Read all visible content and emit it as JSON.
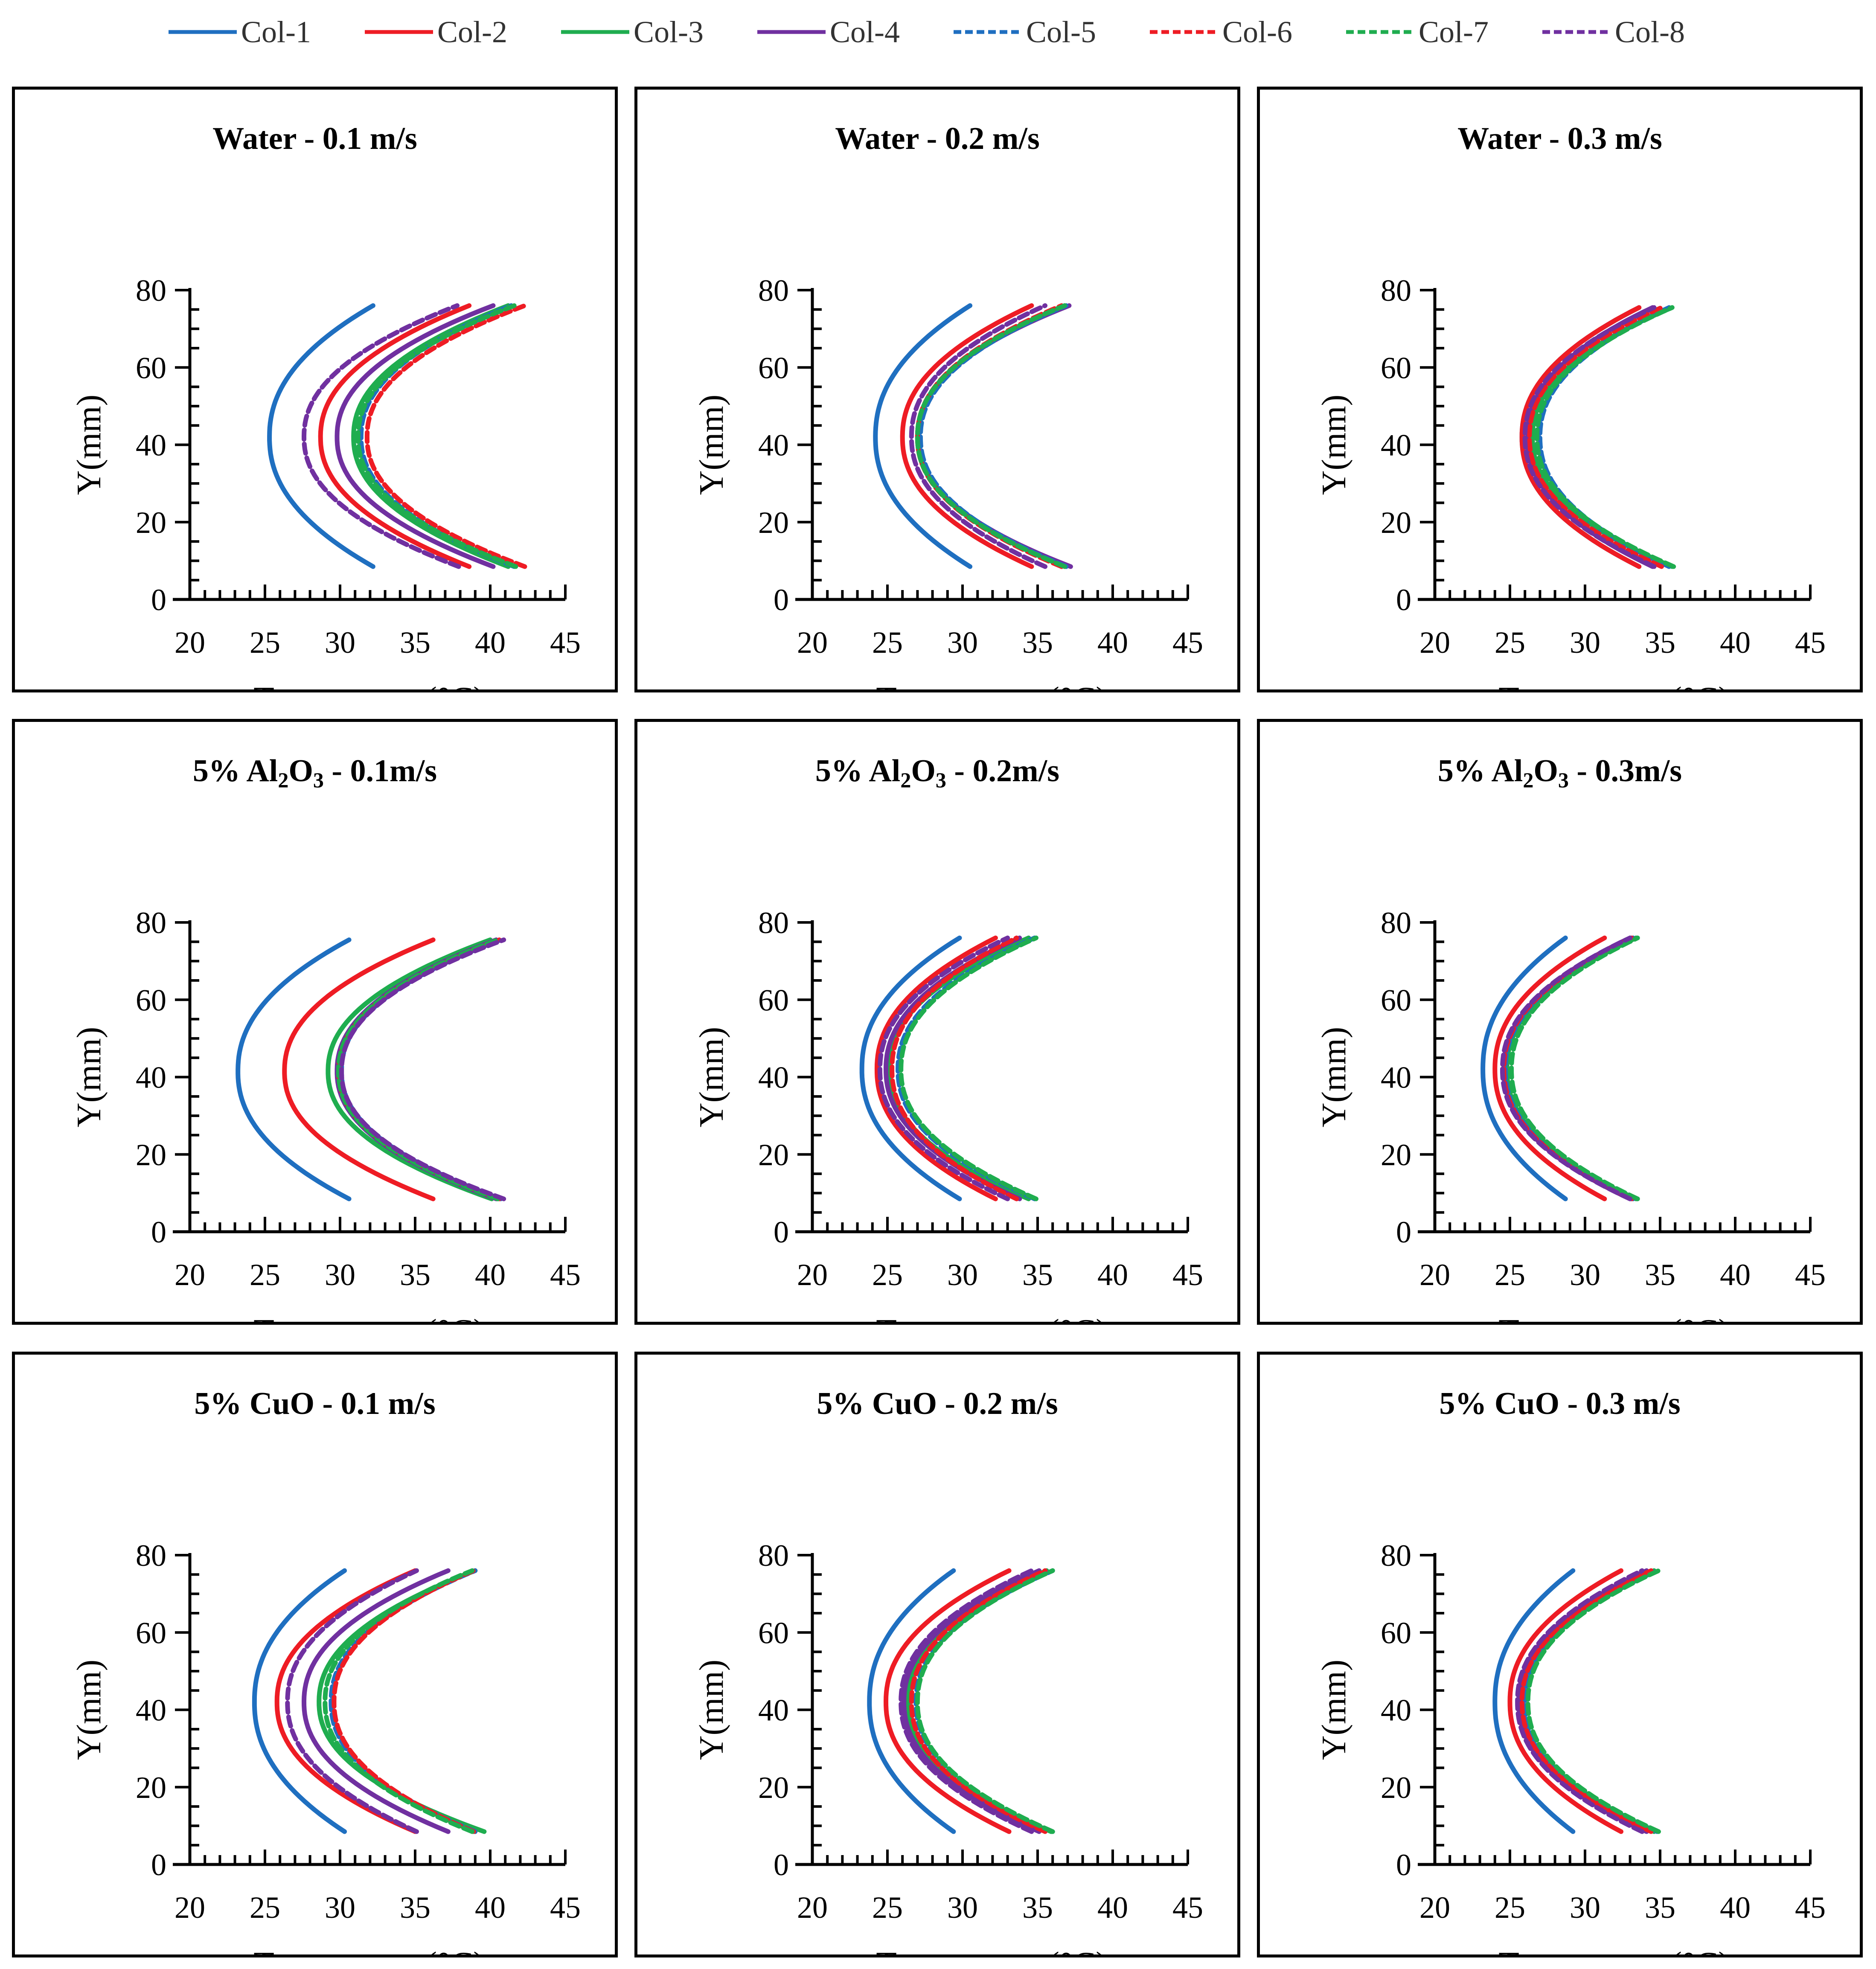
{
  "legend": {
    "items": [
      {
        "label": "Col-1",
        "color": "#1f6fc0",
        "dash": false
      },
      {
        "label": "Col-2",
        "color": "#ee1c24",
        "dash": false
      },
      {
        "label": "Col-3",
        "color": "#1fad4f",
        "dash": false
      },
      {
        "label": "Col-4",
        "color": "#7030a0",
        "dash": false
      },
      {
        "label": "Col-5",
        "color": "#1f6fc0",
        "dash": true
      },
      {
        "label": "Col-6",
        "color": "#ee1c24",
        "dash": true
      },
      {
        "label": "Col-7",
        "color": "#1fad4f",
        "dash": true
      },
      {
        "label": "Col-8",
        "color": "#7030a0",
        "dash": true
      }
    ]
  },
  "panels": [
    {
      "title": "Water - 0.1 m/s",
      "title_parts": {
        "pre": "",
        "sub": "",
        "post": ""
      }
    },
    {
      "title": "Water - 0.2 m/s",
      "title_parts": {
        "pre": "",
        "sub": "",
        "post": ""
      }
    },
    {
      "title": "Water - 0.3 m/s",
      "title_parts": {
        "pre": "",
        "sub": "",
        "post": ""
      }
    },
    {
      "title": "",
      "title_parts": {
        "pre": "5% Al",
        "sub": "2",
        "mid": "O",
        "sub2": "3",
        "post": " - 0.1m/s"
      }
    },
    {
      "title": "",
      "title_parts": {
        "pre": "5% Al",
        "sub": "2",
        "mid": "O",
        "sub2": "3",
        "post": " - 0.2m/s"
      }
    },
    {
      "title": "",
      "title_parts": {
        "pre": "5% Al",
        "sub": "2",
        "mid": "O",
        "sub2": "3",
        "post": " - 0.3m/s"
      }
    },
    {
      "title": "5% CuO - 0.1 m/s",
      "title_parts": {
        "pre": "",
        "sub": "",
        "post": ""
      }
    },
    {
      "title": "5% CuO - 0.2 m/s",
      "title_parts": {
        "pre": "",
        "sub": "",
        "post": ""
      }
    },
    {
      "title": "5% CuO - 0.3 m/s",
      "title_parts": {
        "pre": "",
        "sub": "",
        "post": ""
      }
    }
  ],
  "chart_data": [
    {
      "type": "line",
      "title": "Water - 0.1 m/s",
      "xlabel": "Tempreature(°C)",
      "ylabel": "Y(mm)",
      "xlim": [
        20,
        45
      ],
      "ylim": [
        0,
        80
      ],
      "xticks": [
        20,
        25,
        30,
        35,
        40,
        45
      ],
      "yticks": [
        0,
        20,
        40,
        60,
        80
      ],
      "y_top": 76,
      "y_mid": 42,
      "y_bottom": 8.5,
      "series": [
        {
          "name": "Col-1",
          "min": 25.3,
          "top": 32.2,
          "bottom": 32.2
        },
        {
          "name": "Col-2",
          "min": 28.7,
          "top": 38.6,
          "bottom": 38.6
        },
        {
          "name": "Col-3",
          "min": 30.9,
          "top": 41.2,
          "bottom": 41.2
        },
        {
          "name": "Col-4",
          "min": 29.8,
          "top": 40.2,
          "bottom": 40.2
        },
        {
          "name": "Col-5",
          "min": 31.4,
          "top": 41.4,
          "bottom": 41.6
        },
        {
          "name": "Col-6",
          "min": 31.8,
          "top": 42.3,
          "bottom": 42.3
        },
        {
          "name": "Col-7",
          "min": 31.2,
          "top": 41.6,
          "bottom": 41.7
        },
        {
          "name": "Col-8",
          "min": 27.6,
          "top": 37.8,
          "bottom": 37.9
        }
      ]
    },
    {
      "type": "line",
      "title": "Water - 0.2 m/s",
      "xlabel": "Tempreature(°C)",
      "ylabel": "Y(mm)",
      "xlim": [
        20,
        45
      ],
      "ylim": [
        0,
        80
      ],
      "xticks": [
        20,
        25,
        30,
        35,
        40,
        45
      ],
      "yticks": [
        0,
        20,
        40,
        60,
        80
      ],
      "y_top": 76,
      "y_mid": 42,
      "y_bottom": 8.5,
      "series": [
        {
          "name": "Col-1",
          "min": 24.2,
          "top": 30.5,
          "bottom": 30.5
        },
        {
          "name": "Col-2",
          "min": 26.0,
          "top": 34.6,
          "bottom": 34.6
        },
        {
          "name": "Col-3",
          "min": 27.0,
          "top": 36.8,
          "bottom": 36.9
        },
        {
          "name": "Col-4",
          "min": 27.0,
          "top": 37.1,
          "bottom": 37.2
        },
        {
          "name": "Col-5",
          "min": 27.2,
          "top": 36.9,
          "bottom": 36.9
        },
        {
          "name": "Col-6",
          "min": 27.0,
          "top": 36.6,
          "bottom": 36.6
        },
        {
          "name": "Col-7",
          "min": 27.0,
          "top": 36.8,
          "bottom": 36.8
        },
        {
          "name": "Col-8",
          "min": 26.6,
          "top": 35.5,
          "bottom": 35.5
        }
      ]
    },
    {
      "type": "line",
      "title": "Water - 0.3 m/s",
      "xlabel": "Tempreature(°C)",
      "ylabel": "Y(mm)",
      "xlim": [
        20,
        45
      ],
      "ylim": [
        0,
        80
      ],
      "xticks": [
        20,
        25,
        30,
        35,
        40,
        45
      ],
      "yticks": [
        0,
        20,
        40,
        60,
        80
      ],
      "y_top": 75.5,
      "y_mid": 42,
      "y_bottom": 8.5,
      "series": [
        {
          "name": "Col-1",
          "min": 25.8,
          "top": 33.6,
          "bottom": 33.6
        },
        {
          "name": "Col-2",
          "min": 25.8,
          "top": 33.6,
          "bottom": 33.6
        },
        {
          "name": "Col-3",
          "min": 26.5,
          "top": 35.8,
          "bottom": 35.8
        },
        {
          "name": "Col-4",
          "min": 26.2,
          "top": 34.5,
          "bottom": 34.5
        },
        {
          "name": "Col-5",
          "min": 27.0,
          "top": 35.6,
          "bottom": 35.6
        },
        {
          "name": "Col-6",
          "min": 26.3,
          "top": 35.1,
          "bottom": 35.1
        },
        {
          "name": "Col-7",
          "min": 26.8,
          "top": 35.8,
          "bottom": 35.9
        },
        {
          "name": "Col-8",
          "min": 26.0,
          "top": 34.6,
          "bottom": 34.6
        }
      ]
    },
    {
      "type": "line",
      "title": "5% Al2O3 - 0.1m/s",
      "xlabel": "Tempreature(°C)",
      "ylabel": "Y(mm)",
      "xlim": [
        20,
        45
      ],
      "ylim": [
        0,
        80
      ],
      "xticks": [
        20,
        25,
        30,
        35,
        40,
        45
      ],
      "yticks": [
        0,
        20,
        40,
        60,
        80
      ],
      "y_top": 75.5,
      "y_mid": 41.5,
      "y_bottom": 8.5,
      "series": [
        {
          "name": "Col-1",
          "min": 23.2,
          "top": 30.6,
          "bottom": 30.6
        },
        {
          "name": "Col-2",
          "min": 26.3,
          "top": 36.2,
          "bottom": 36.2
        },
        {
          "name": "Col-3",
          "min": 29.2,
          "top": 40.0,
          "bottom": 40.1
        },
        {
          "name": "Col-4",
          "min": 29.8,
          "top": 40.4,
          "bottom": 40.4
        },
        {
          "name": "Col-5",
          "min": 30.1,
          "top": 40.7,
          "bottom": 40.7
        },
        {
          "name": "Col-6",
          "min": 29.9,
          "top": 40.6,
          "bottom": 40.6
        },
        {
          "name": "Col-7",
          "min": 29.9,
          "top": 40.5,
          "bottom": 40.5
        },
        {
          "name": "Col-8",
          "min": 30.1,
          "top": 40.9,
          "bottom": 40.9
        }
      ]
    },
    {
      "type": "line",
      "title": "5% Al2O3 - 0.2m/s",
      "xlabel": "Tempreature(°C)",
      "ylabel": "Y(mm)",
      "xlim": [
        20,
        45
      ],
      "ylim": [
        0,
        80
      ],
      "xticks": [
        20,
        25,
        30,
        35,
        40,
        45
      ],
      "yticks": [
        0,
        20,
        40,
        60,
        80
      ],
      "y_top": 76,
      "y_mid": 42,
      "y_bottom": 8.5,
      "series": [
        {
          "name": "Col-1",
          "min": 23.3,
          "top": 29.8,
          "bottom": 29.8
        },
        {
          "name": "Col-2",
          "min": 24.3,
          "top": 32.2,
          "bottom": 32.2
        },
        {
          "name": "Col-3",
          "min": 25.1,
          "top": 34.4,
          "bottom": 34.4
        },
        {
          "name": "Col-4",
          "min": 24.9,
          "top": 33.8,
          "bottom": 33.8
        },
        {
          "name": "Col-5",
          "min": 25.7,
          "top": 34.8,
          "bottom": 34.8
        },
        {
          "name": "Col-6",
          "min": 25.3,
          "top": 33.6,
          "bottom": 33.6
        },
        {
          "name": "Col-7",
          "min": 25.9,
          "top": 34.9,
          "bottom": 34.9
        },
        {
          "name": "Col-8",
          "min": 24.5,
          "top": 33.0,
          "bottom": 33.0
        }
      ]
    },
    {
      "type": "line",
      "title": "5% Al2O3 - 0.3m/s",
      "xlabel": "Tempreature(°C)",
      "ylabel": "Y(mm)",
      "xlim": [
        20,
        45
      ],
      "ylim": [
        0,
        80
      ],
      "xticks": [
        20,
        25,
        30,
        35,
        40,
        45
      ],
      "yticks": [
        0,
        20,
        40,
        60,
        80
      ],
      "y_top": 76,
      "y_mid": 42,
      "y_bottom": 8.5,
      "series": [
        {
          "name": "Col-1",
          "min": 23.2,
          "top": 28.7,
          "bottom": 28.7
        },
        {
          "name": "Col-2",
          "min": 24.0,
          "top": 31.3,
          "bottom": 31.3
        },
        {
          "name": "Col-3",
          "min": 24.8,
          "top": 33.4,
          "bottom": 33.4
        },
        {
          "name": "Col-4",
          "min": 24.6,
          "top": 33.0,
          "bottom": 33.0
        },
        {
          "name": "Col-5",
          "min": 24.7,
          "top": 33.2,
          "bottom": 33.2
        },
        {
          "name": "Col-6",
          "min": 24.6,
          "top": 33.1,
          "bottom": 33.1
        },
        {
          "name": "Col-7",
          "min": 25.1,
          "top": 33.5,
          "bottom": 33.5
        },
        {
          "name": "Col-8",
          "min": 24.5,
          "top": 33.0,
          "bottom": 33.0
        }
      ]
    },
    {
      "type": "line",
      "title": "5% CuO - 0.1 m/s",
      "xlabel": "Tempreature(°C)",
      "ylabel": "Y(mm)",
      "xlim": [
        20,
        45
      ],
      "ylim": [
        0,
        80
      ],
      "xticks": [
        20,
        25,
        30,
        35,
        40,
        45
      ],
      "yticks": [
        0,
        20,
        40,
        60,
        80
      ],
      "y_top": 76,
      "y_mid": 42,
      "y_bottom": 8.5,
      "series": [
        {
          "name": "Col-1",
          "min": 24.3,
          "top": 30.3,
          "bottom": 30.3
        },
        {
          "name": "Col-2",
          "min": 25.8,
          "top": 35.0,
          "bottom": 35.0
        },
        {
          "name": "Col-3",
          "min": 28.6,
          "top": 39.0,
          "bottom": 39.6
        },
        {
          "name": "Col-4",
          "min": 27.6,
          "top": 37.2,
          "bottom": 37.2
        },
        {
          "name": "Col-5",
          "min": 29.4,
          "top": 39.0,
          "bottom": 39.0
        },
        {
          "name": "Col-6",
          "min": 29.6,
          "top": 38.9,
          "bottom": 38.9
        },
        {
          "name": "Col-7",
          "min": 29.0,
          "top": 38.8,
          "bottom": 38.8
        },
        {
          "name": "Col-8",
          "min": 26.5,
          "top": 35.1,
          "bottom": 35.1
        }
      ]
    },
    {
      "type": "line",
      "title": "5% CuO - 0.2 m/s",
      "xlabel": "Tempreature(°C)",
      "ylabel": "Y(mm)",
      "xlim": [
        20,
        45
      ],
      "ylim": [
        0,
        80
      ],
      "xticks": [
        20,
        25,
        30,
        35,
        40,
        45
      ],
      "yticks": [
        0,
        20,
        40,
        60,
        80
      ],
      "y_top": 76,
      "y_mid": 42,
      "y_bottom": 8.5,
      "series": [
        {
          "name": "Col-1",
          "min": 23.8,
          "top": 29.4,
          "bottom": 29.4
        },
        {
          "name": "Col-2",
          "min": 24.9,
          "top": 33.1,
          "bottom": 33.1
        },
        {
          "name": "Col-3",
          "min": 26.4,
          "top": 35.6,
          "bottom": 35.9
        },
        {
          "name": "Col-4",
          "min": 26.1,
          "top": 35.1,
          "bottom": 35.1
        },
        {
          "name": "Col-5",
          "min": 26.9,
          "top": 36.0,
          "bottom": 36.0
        },
        {
          "name": "Col-6",
          "min": 26.6,
          "top": 35.5,
          "bottom": 35.5
        },
        {
          "name": "Col-7",
          "min": 27.0,
          "top": 36.0,
          "bottom": 36.0
        },
        {
          "name": "Col-8",
          "min": 25.9,
          "top": 34.6,
          "bottom": 34.6
        }
      ]
    },
    {
      "type": "line",
      "title": "5% CuO - 0.3 m/s",
      "xlabel": "Tempreature(°C)",
      "ylabel": "Y(mm)",
      "xlim": [
        20,
        45
      ],
      "ylim": [
        0,
        80
      ],
      "xticks": [
        20,
        25,
        30,
        35,
        40,
        45
      ],
      "yticks": [
        0,
        20,
        40,
        60,
        80
      ],
      "y_top": 76,
      "y_mid": 42,
      "y_bottom": 8.5,
      "series": [
        {
          "name": "Col-1",
          "min": 24.0,
          "top": 29.2,
          "bottom": 29.2
        },
        {
          "name": "Col-2",
          "min": 25.0,
          "top": 32.4,
          "bottom": 32.4
        },
        {
          "name": "Col-3",
          "min": 25.8,
          "top": 34.6,
          "bottom": 34.6
        },
        {
          "name": "Col-4",
          "min": 25.6,
          "top": 34.1,
          "bottom": 34.1
        },
        {
          "name": "Col-5",
          "min": 26.0,
          "top": 34.8,
          "bottom": 34.8
        },
        {
          "name": "Col-6",
          "min": 25.8,
          "top": 34.4,
          "bottom": 34.4
        },
        {
          "name": "Col-7",
          "min": 26.2,
          "top": 34.9,
          "bottom": 34.9
        },
        {
          "name": "Col-8",
          "min": 25.5,
          "top": 33.8,
          "bottom": 33.8
        }
      ]
    }
  ]
}
